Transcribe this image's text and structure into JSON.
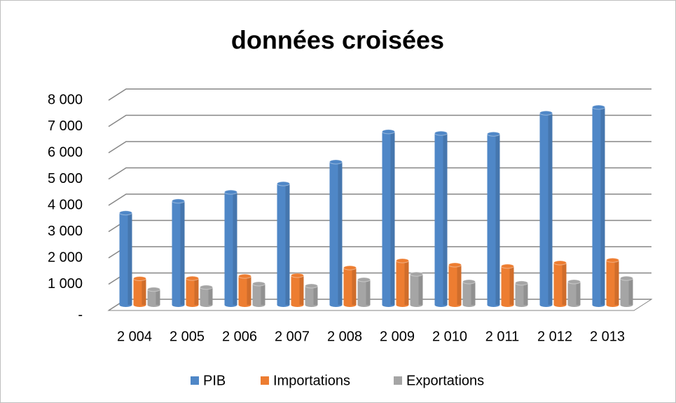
{
  "chart_data": {
    "type": "bar3d",
    "title": "données croisées",
    "categories": [
      "2 004",
      "2 005",
      "2 006",
      "2 007",
      "2 008",
      "2 009",
      "2 010",
      "2 011",
      "2 012",
      "2 013"
    ],
    "series": [
      {
        "name": "PIB",
        "color": "#4f87c7",
        "values": [
          3500,
          3950,
          4290,
          4610,
          5440,
          6590,
          6530,
          6500,
          7300,
          7520
        ]
      },
      {
        "name": "Importations",
        "color": "#ed7d31",
        "values": [
          1000,
          1010,
          1090,
          1120,
          1410,
          1680,
          1520,
          1470,
          1600,
          1700
        ]
      },
      {
        "name": "Exportations",
        "color": "#a5a5a5",
        "values": [
          590,
          670,
          800,
          720,
          960,
          1170,
          880,
          830,
          880,
          1010
        ]
      }
    ],
    "ylim": [
      0,
      8000
    ],
    "yticks": [
      {
        "value": 0,
        "label": "-"
      },
      {
        "value": 1000,
        "label": "1 000"
      },
      {
        "value": 2000,
        "label": "2 000"
      },
      {
        "value": 3000,
        "label": "3 000"
      },
      {
        "value": 4000,
        "label": "4 000"
      },
      {
        "value": 5000,
        "label": "5 000"
      },
      {
        "value": 6000,
        "label": "6 000"
      },
      {
        "value": 7000,
        "label": "7 000"
      },
      {
        "value": 8000,
        "label": "8 000"
      }
    ],
    "grid": true,
    "legend": "bottom"
  }
}
